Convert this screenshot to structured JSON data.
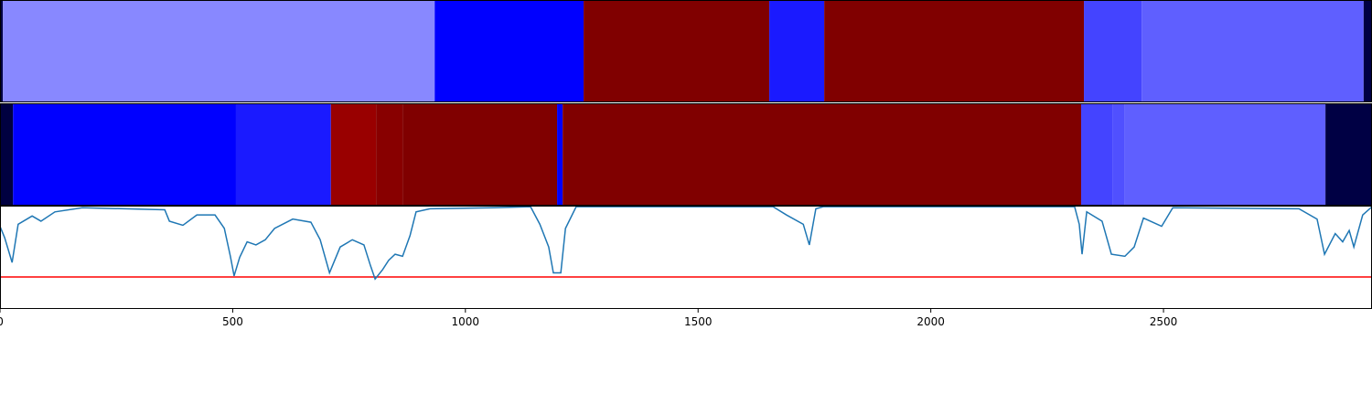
{
  "chart_data": {
    "type": "line",
    "xlim": [
      0,
      2948
    ],
    "ylim": [
      0,
      1
    ],
    "xticks": [
      0,
      500,
      1000,
      1500,
      2000,
      2500
    ],
    "bands": [
      [
        {
          "start": 0,
          "end": 6,
          "color": "#000044"
        },
        {
          "start": 6,
          "end": 934,
          "color": "#8888ff"
        },
        {
          "start": 934,
          "end": 1254,
          "color": "#0000ff"
        },
        {
          "start": 1254,
          "end": 1653,
          "color": "#800000"
        },
        {
          "start": 1653,
          "end": 1771,
          "color": "#1a1aff"
        },
        {
          "start": 1771,
          "end": 2329,
          "color": "#800000"
        },
        {
          "start": 2329,
          "end": 2453,
          "color": "#4444ff"
        },
        {
          "start": 2453,
          "end": 2930,
          "color": "#5f5fff"
        },
        {
          "start": 2930,
          "end": 2948,
          "color": "#000044"
        }
      ],
      [
        {
          "start": 0,
          "end": 28,
          "color": "#000040"
        },
        {
          "start": 28,
          "end": 507,
          "color": "#0000ff"
        },
        {
          "start": 507,
          "end": 711,
          "color": "#1a1aff"
        },
        {
          "start": 711,
          "end": 808,
          "color": "#990000"
        },
        {
          "start": 808,
          "end": 865,
          "color": "#880000"
        },
        {
          "start": 865,
          "end": 1197,
          "color": "#800000"
        },
        {
          "start": 1197,
          "end": 1209,
          "color": "#0000ff"
        },
        {
          "start": 1209,
          "end": 2323,
          "color": "#800000"
        },
        {
          "start": 2323,
          "end": 2390,
          "color": "#4444ff"
        },
        {
          "start": 2390,
          "end": 2417,
          "color": "#5050ff"
        },
        {
          "start": 2417,
          "end": 2848,
          "color": "#5f5fff"
        },
        {
          "start": 2848,
          "end": 2948,
          "color": "#000044"
        }
      ]
    ],
    "x": [
      0,
      10,
      26,
      39,
      69,
      88,
      118,
      177,
      354,
      364,
      393,
      423,
      462,
      482,
      495,
      503,
      515,
      531,
      550,
      570,
      590,
      629,
      668,
      688,
      708,
      731,
      757,
      782,
      796,
      806,
      822,
      835,
      849,
      865,
      881,
      894,
      924,
      1061,
      1140,
      1160,
      1179,
      1189,
      1205,
      1215,
      1238,
      1661,
      1690,
      1726,
      1739,
      1753,
      1769,
      2309,
      2319,
      2325,
      2335,
      2368,
      2388,
      2417,
      2437,
      2457,
      2496,
      2520,
      2791,
      2830,
      2846,
      2869,
      2885,
      2899,
      2909,
      2928,
      2948
    ],
    "series": [
      {
        "color": "#1f77b4",
        "values": [
          0.8,
          0.69,
          0.45,
          0.82,
          0.9,
          0.85,
          0.94,
          0.98,
          0.96,
          0.85,
          0.81,
          0.91,
          0.91,
          0.78,
          0.51,
          0.32,
          0.5,
          0.65,
          0.62,
          0.67,
          0.78,
          0.87,
          0.84,
          0.67,
          0.35,
          0.6,
          0.67,
          0.62,
          0.42,
          0.29,
          0.38,
          0.47,
          0.53,
          0.51,
          0.71,
          0.94,
          0.97,
          0.98,
          0.99,
          0.82,
          0.6,
          0.35,
          0.35,
          0.78,
          0.99,
          0.99,
          0.91,
          0.82,
          0.62,
          0.97,
          0.99,
          0.99,
          0.82,
          0.53,
          0.94,
          0.85,
          0.53,
          0.51,
          0.6,
          0.88,
          0.8,
          0.98,
          0.97,
          0.87,
          0.53,
          0.73,
          0.65,
          0.76,
          0.6,
          0.91,
          0.99
        ]
      }
    ],
    "hline": {
      "value": 0.31,
      "color": "#ff0000"
    }
  }
}
